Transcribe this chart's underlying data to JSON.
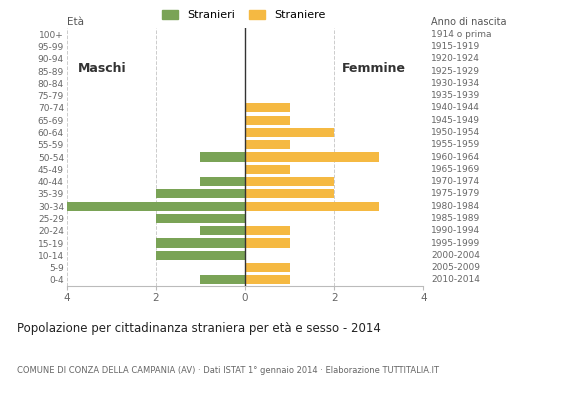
{
  "age_groups": [
    "100+",
    "95-99",
    "90-94",
    "85-89",
    "80-84",
    "75-79",
    "70-74",
    "65-69",
    "60-64",
    "55-59",
    "50-54",
    "45-49",
    "40-44",
    "35-39",
    "30-34",
    "25-29",
    "20-24",
    "15-19",
    "10-14",
    "5-9",
    "0-4"
  ],
  "birth_years": [
    "1914 o prima",
    "1915-1919",
    "1920-1924",
    "1925-1929",
    "1930-1934",
    "1935-1939",
    "1940-1944",
    "1945-1949",
    "1950-1954",
    "1955-1959",
    "1960-1964",
    "1965-1969",
    "1970-1974",
    "1975-1979",
    "1980-1984",
    "1985-1989",
    "1990-1994",
    "1995-1999",
    "2000-2004",
    "2005-2009",
    "2010-2014"
  ],
  "males": [
    0,
    0,
    0,
    0,
    0,
    0,
    0,
    0,
    0,
    0,
    1,
    0,
    1,
    2,
    4,
    2,
    1,
    2,
    2,
    0,
    1
  ],
  "females": [
    0,
    0,
    0,
    0,
    0,
    0,
    1,
    1,
    2,
    1,
    3,
    1,
    2,
    2,
    3,
    0,
    1,
    1,
    0,
    1,
    1
  ],
  "male_color": "#7aa356",
  "female_color": "#f5b942",
  "title": "Popolazione per cittadinanza straniera per età e sesso - 2014",
  "subtitle": "COMUNE DI CONZA DELLA CAMPANIA (AV) · Dati ISTAT 1° gennaio 2014 · Elaborazione TUTTITALIA.IT",
  "legend_male": "Stranieri",
  "legend_female": "Straniere",
  "xlim": 4,
  "background_color": "#ffffff",
  "bar_height": 0.75
}
